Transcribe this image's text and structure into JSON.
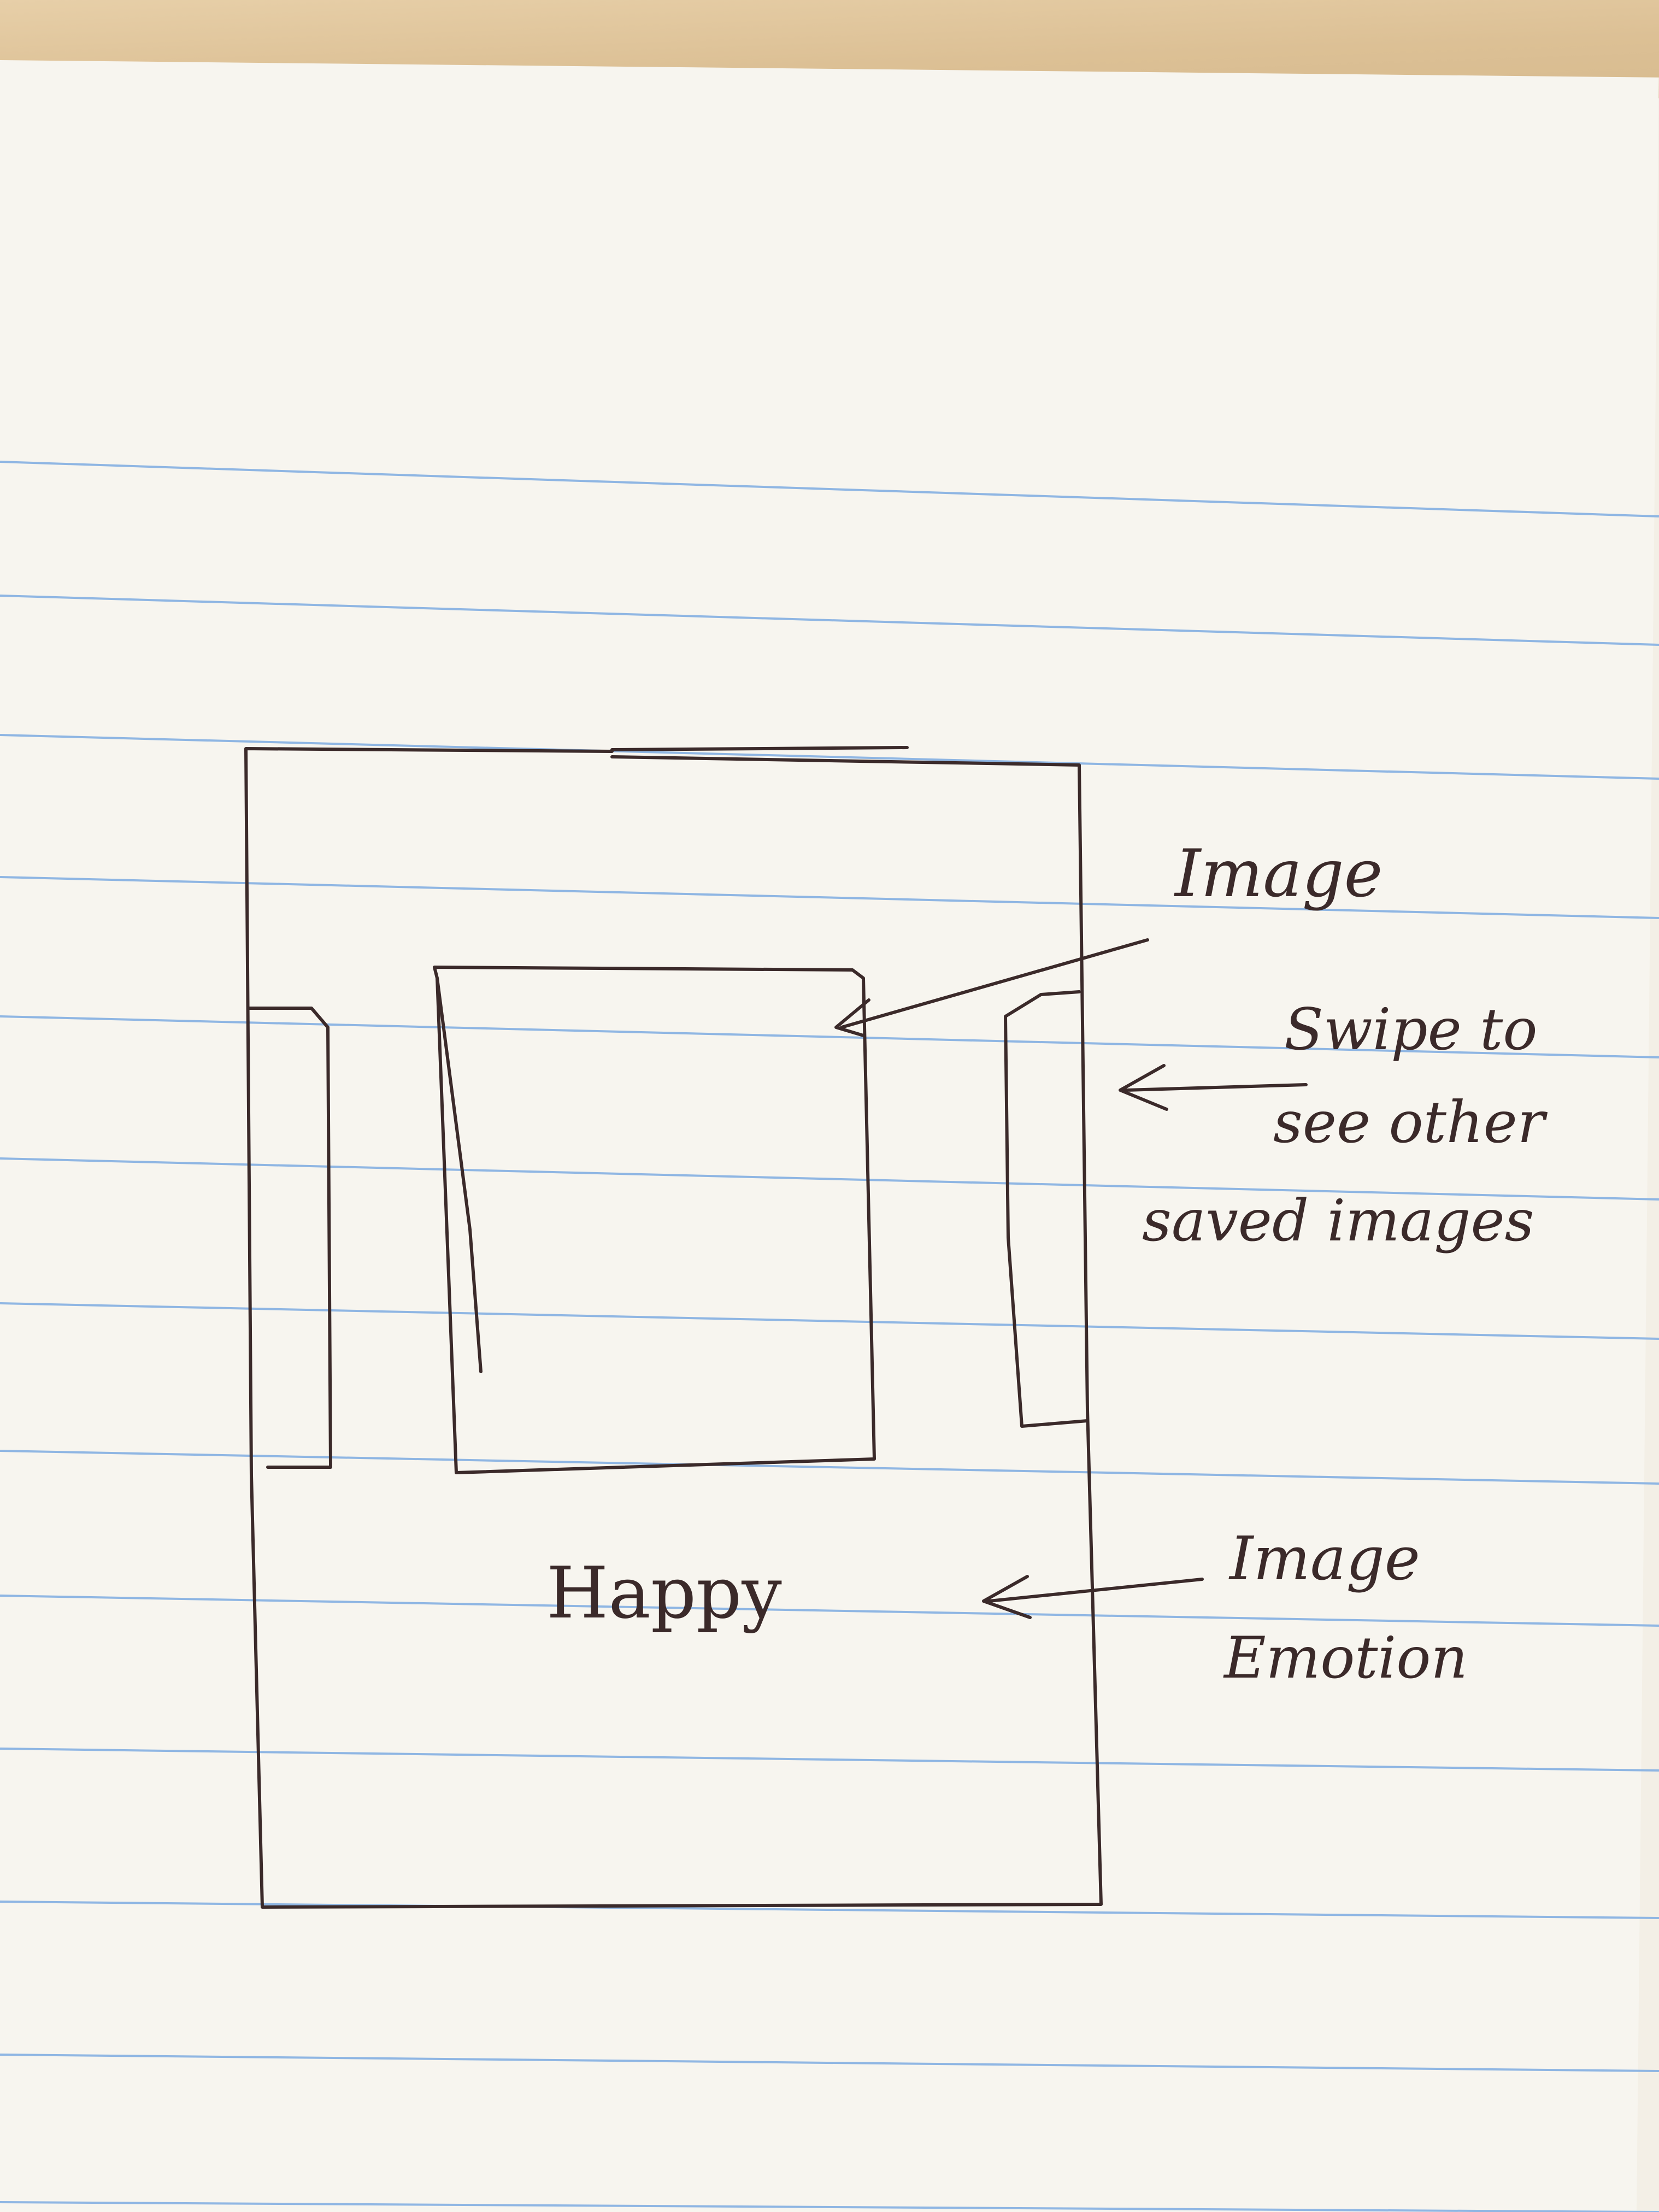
{
  "annotations": {
    "image_label": "Image",
    "swipe_label_line1": "Swipe to",
    "swipe_label_line2": "see other",
    "swipe_label_line3": "saved images",
    "emotion_label_line1": "Image",
    "emotion_label_line2": "Emotion"
  },
  "phone_screen": {
    "emotion_text": "Happy"
  },
  "colors": {
    "ink": "#3b2a2a",
    "ruled_line": "#8fb6e3",
    "paper": "#f7f5ef",
    "desk": "#dcc095"
  }
}
